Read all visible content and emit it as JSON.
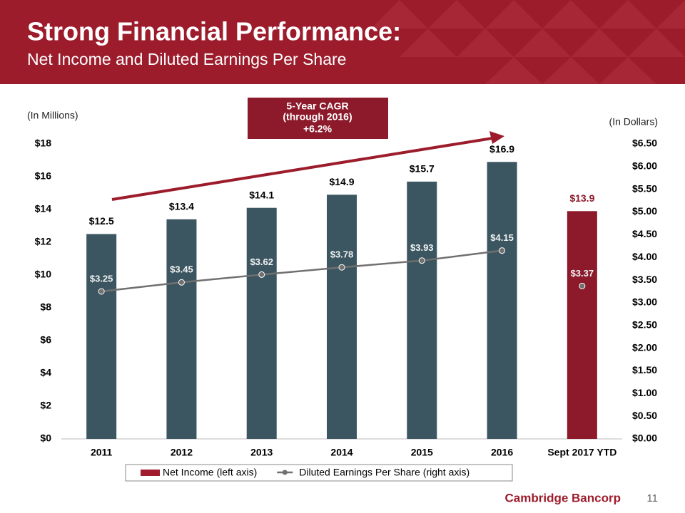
{
  "chart_data": {
    "type": "bar",
    "title": "Strong Financial Performance:",
    "subtitle": "Net Income and Diluted Earnings Per Share",
    "ylabel": "(In Millions)",
    "y2label": "(In Dollars)",
    "annotation": [
      "5-Year CAGR",
      "(through 2016)",
      "+6.2%"
    ],
    "company": "Cambridge Bancorp",
    "page_number": "11",
    "categories": [
      "2011",
      "2012",
      "2013",
      "2014",
      "2015",
      "2016",
      "Sept 2017 YTD"
    ],
    "series": [
      {
        "name": "Net Income (left axis)",
        "type": "bar",
        "color": "#a01c2e",
        "colors": [
          "#3b5661",
          "#3b5661",
          "#3b5661",
          "#3b5661",
          "#3b5661",
          "#3b5661",
          "#8c1a2b"
        ],
        "values": [
          12.5,
          13.4,
          14.1,
          14.9,
          15.7,
          16.9,
          13.9
        ],
        "value_labels": [
          "$12.5",
          "$13.4",
          "$14.1",
          "$14.9",
          "$15.7",
          "$16.9",
          "$13.9"
        ]
      },
      {
        "name": "Diluted Earnings Per Share (right axis)",
        "type": "line",
        "axis": "y2",
        "color": "#707070",
        "values": [
          3.25,
          3.45,
          3.62,
          3.78,
          3.93,
          4.15,
          3.37
        ],
        "value_labels": [
          "$3.25",
          "$3.45",
          "$3.62",
          "$3.78",
          "$3.93",
          "$4.15",
          "$3.37"
        ]
      }
    ],
    "ylim": [
      0,
      18
    ],
    "yticks": [
      {
        "value": 0,
        "label": "$0"
      },
      {
        "value": 2,
        "label": "$2"
      },
      {
        "value": 4,
        "label": "$4"
      },
      {
        "value": 6,
        "label": "$6"
      },
      {
        "value": 8,
        "label": "$8"
      },
      {
        "value": 10,
        "label": "$10"
      },
      {
        "value": 12,
        "label": "$12"
      },
      {
        "value": 14,
        "label": "$14"
      },
      {
        "value": 16,
        "label": "$16"
      },
      {
        "value": 18,
        "label": "$18"
      }
    ],
    "y2lim": [
      0,
      6.5
    ],
    "y2ticks": [
      {
        "value": 0,
        "label": "$0.00"
      },
      {
        "value": 0.5,
        "label": "$0.50"
      },
      {
        "value": 1,
        "label": "$1.00"
      },
      {
        "value": 1.5,
        "label": "$1.50"
      },
      {
        "value": 2,
        "label": "$2.00"
      },
      {
        "value": 2.5,
        "label": "$2.50"
      },
      {
        "value": 3,
        "label": "$3.00"
      },
      {
        "value": 3.5,
        "label": "$3.50"
      },
      {
        "value": 4,
        "label": "$4.00"
      },
      {
        "value": 4.5,
        "label": "$4.50"
      },
      {
        "value": 5,
        "label": "$5.00"
      },
      {
        "value": 5.5,
        "label": "$5.50"
      },
      {
        "value": 6,
        "label": "$6.00"
      },
      {
        "value": 6.5,
        "label": "$6.50"
      }
    ],
    "grid": false,
    "legend": "bottom"
  }
}
